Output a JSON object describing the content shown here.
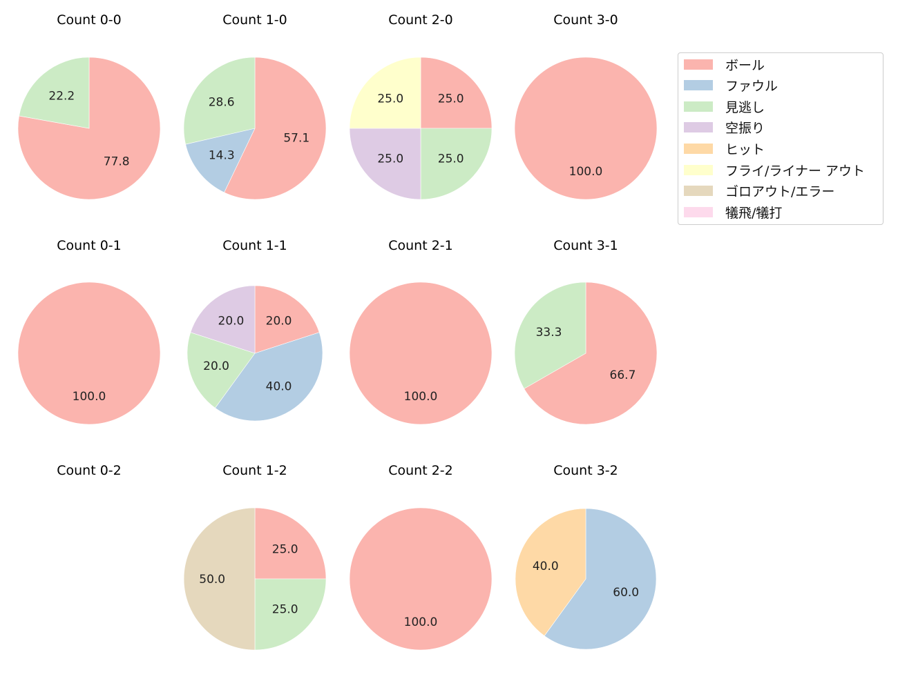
{
  "chart_data": {
    "type": "pie",
    "layout": {
      "rows": 3,
      "cols": 4,
      "start_angle": 90,
      "direction": "clockwise",
      "label_format": "%.1f"
    },
    "categories": [
      "ボール",
      "ファウル",
      "見逃し",
      "空振り",
      "ヒット",
      "フライ/ライナー アウト",
      "ゴロアウト/エラー",
      "犠飛/犠打"
    ],
    "colors": [
      "#fbb4ae",
      "#b3cde3",
      "#ccebc5",
      "#decbe4",
      "#fed9a6",
      "#ffffcc",
      "#e5d8bd",
      "#fddaec"
    ],
    "legend": {
      "position": "upper right",
      "entries": [
        "ボール",
        "ファウル",
        "見逃し",
        "空振り",
        "ヒット",
        "フライ/ライナー アウト",
        "ゴロアウト/エラー",
        "犠飛/犠打"
      ]
    },
    "charts": [
      {
        "title": "Count 0-0",
        "row": 0,
        "col": 0,
        "slices": [
          {
            "category": "ボール",
            "value": 77.8
          },
          {
            "category": "見逃し",
            "value": 22.2
          }
        ]
      },
      {
        "title": "Count 1-0",
        "row": 0,
        "col": 1,
        "slices": [
          {
            "category": "ボール",
            "value": 57.1
          },
          {
            "category": "ファウル",
            "value": 14.3
          },
          {
            "category": "見逃し",
            "value": 28.6
          }
        ]
      },
      {
        "title": "Count 2-0",
        "row": 0,
        "col": 2,
        "slices": [
          {
            "category": "ボール",
            "value": 25.0
          },
          {
            "category": "見逃し",
            "value": 25.0
          },
          {
            "category": "空振り",
            "value": 25.0
          },
          {
            "category": "フライ/ライナー アウト",
            "value": 25.0
          }
        ]
      },
      {
        "title": "Count 3-0",
        "row": 0,
        "col": 3,
        "slices": [
          {
            "category": "ボール",
            "value": 100.0
          }
        ]
      },
      {
        "title": "Count 0-1",
        "row": 1,
        "col": 0,
        "slices": [
          {
            "category": "ボール",
            "value": 100.0
          }
        ]
      },
      {
        "title": "Count 1-1",
        "row": 1,
        "col": 1,
        "slices": [
          {
            "category": "ボール",
            "value": 20.0
          },
          {
            "category": "ファウル",
            "value": 40.0
          },
          {
            "category": "見逃し",
            "value": 20.0
          },
          {
            "category": "空振り",
            "value": 20.0
          }
        ]
      },
      {
        "title": "Count 2-1",
        "row": 1,
        "col": 2,
        "slices": [
          {
            "category": "ボール",
            "value": 100.0
          }
        ]
      },
      {
        "title": "Count 3-1",
        "row": 1,
        "col": 3,
        "slices": [
          {
            "category": "ボール",
            "value": 66.7
          },
          {
            "category": "見逃し",
            "value": 33.3
          }
        ]
      },
      {
        "title": "Count 0-2",
        "row": 2,
        "col": 0,
        "slices": []
      },
      {
        "title": "Count 1-2",
        "row": 2,
        "col": 1,
        "slices": [
          {
            "category": "ボール",
            "value": 25.0
          },
          {
            "category": "見逃し",
            "value": 25.0
          },
          {
            "category": "ゴロアウト/エラー",
            "value": 50.0
          }
        ]
      },
      {
        "title": "Count 2-2",
        "row": 2,
        "col": 2,
        "slices": [
          {
            "category": "ボール",
            "value": 100.0
          }
        ]
      },
      {
        "title": "Count 3-2",
        "row": 2,
        "col": 3,
        "slices": [
          {
            "category": "ファウル",
            "value": 60.0
          },
          {
            "category": "ヒット",
            "value": 40.0
          }
        ]
      }
    ]
  }
}
